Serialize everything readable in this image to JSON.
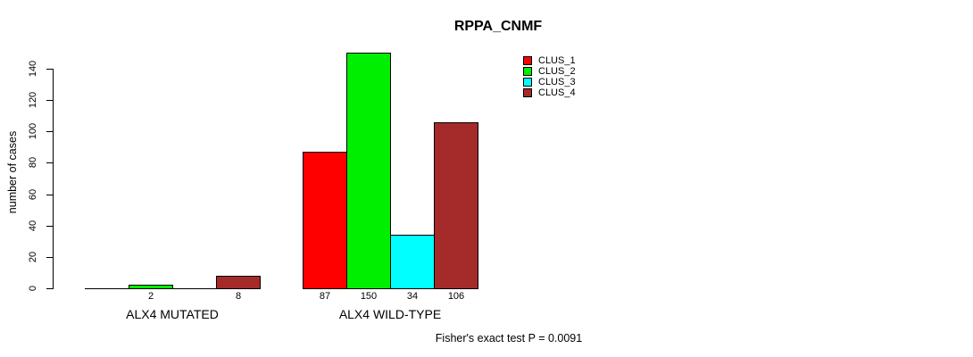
{
  "chart_data": {
    "type": "bar",
    "title": "RPPA_CNMF",
    "xlabel": "",
    "ylabel": "number of cases",
    "categories": [
      "ALX4 MUTATED",
      "ALX4 WILD-TYPE"
    ],
    "series": [
      {
        "name": "CLUS_1",
        "color": "#ff0000",
        "values": [
          0,
          87
        ]
      },
      {
        "name": "CLUS_2",
        "color": "#00ee00",
        "values": [
          2,
          150
        ]
      },
      {
        "name": "CLUS_3",
        "color": "#00ffff",
        "values": [
          0,
          34
        ]
      },
      {
        "name": "CLUS_4",
        "color": "#a52a2a",
        "values": [
          8,
          106
        ]
      }
    ],
    "bar_labels_shown": [
      "2",
      "8",
      "87",
      "150",
      "34",
      "106"
    ],
    "yticks": [
      0,
      20,
      40,
      60,
      80,
      100,
      120,
      140
    ],
    "ylim": [
      0,
      150
    ],
    "grid": false,
    "legend_position": "top-right",
    "legend_entries": [
      "CLUS_1",
      "CLUS_2",
      "CLUS_3",
      "CLUS_4"
    ],
    "annotation": "Fisher's exact test P = 0.0091"
  }
}
